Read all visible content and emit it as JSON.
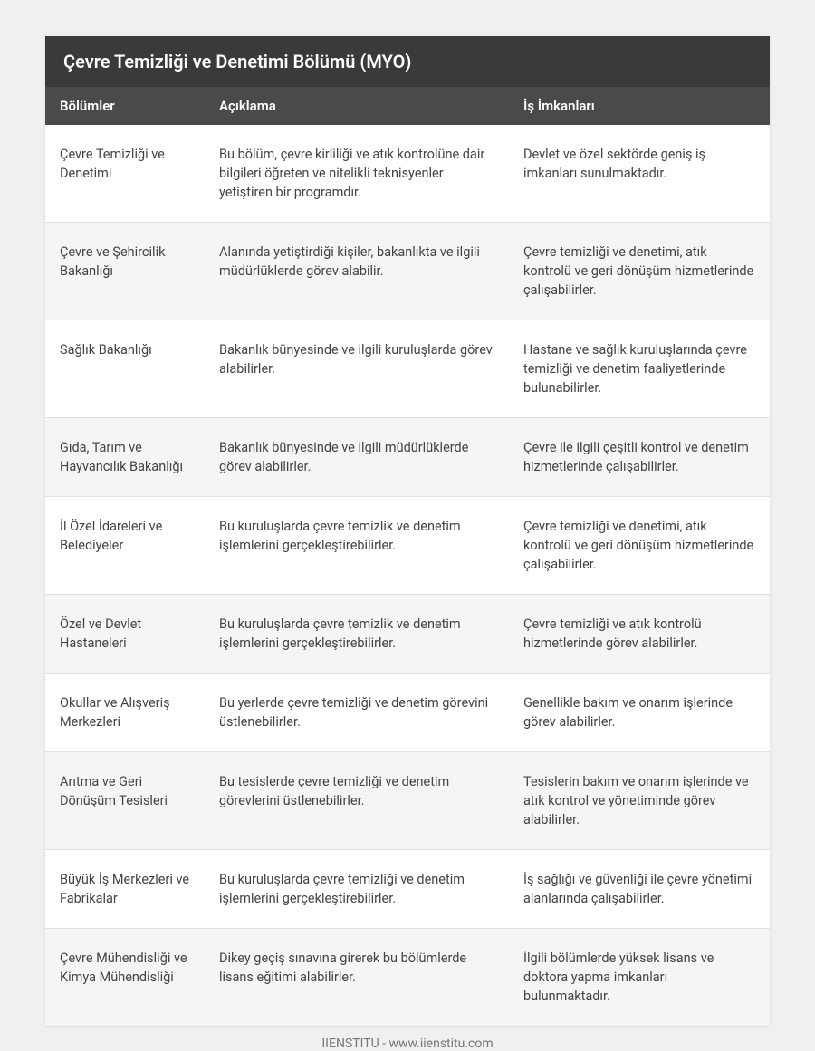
{
  "title": "Çevre Temizliği ve Denetimi Bölümü (MYO)",
  "columns": [
    "Bölümler",
    "Açıklama",
    "İş İmkanları"
  ],
  "rows": [
    {
      "c1": "Çevre Temizliği ve Denetimi",
      "c2": "Bu bölüm, çevre kirliliği ve atık kontrolüne dair bilgileri öğreten ve nitelikli teknisyenler yetiştiren bir programdır.",
      "c3": "Devlet ve özel sektörde geniş iş imkanları sunulmaktadır."
    },
    {
      "c1": "Çevre ve Şehircilik Bakanlığı",
      "c2": "Alanında yetiştirdiği kişiler, bakanlıkta ve ilgili müdürlüklerde görev alabilir.",
      "c3": "Çevre temizliği ve denetimi, atık kontrolü ve geri dönüşüm hizmetlerinde çalışabilirler."
    },
    {
      "c1": "Sağlık Bakanlığı",
      "c2": "Bakanlık bünyesinde ve ilgili kuruluşlarda görev alabilirler.",
      "c3": "Hastane ve sağlık kuruluşlarında çevre temizliği ve denetim faaliyetlerinde bulunabilirler."
    },
    {
      "c1": "Gıda, Tarım ve Hayvancılık Bakanlığı",
      "c2": "Bakanlık bünyesinde ve ilgili müdürlüklerde görev alabilirler.",
      "c3": "Çevre ile ilgili çeşitli kontrol ve denetim hizmetlerinde çalışabilirler."
    },
    {
      "c1": "İl Özel İdareleri ve Belediyeler",
      "c2": "Bu kuruluşlarda çevre temizlik ve denetim işlemlerini gerçekleştirebilirler.",
      "c3": "Çevre temizliği ve denetimi, atık kontrolü ve geri dönüşüm hizmetlerinde çalışabilirler."
    },
    {
      "c1": "Özel ve Devlet Hastaneleri",
      "c2": "Bu kuruluşlarda çevre temizlik ve denetim işlemlerini gerçekleştirebilirler.",
      "c3": "Çevre temizliği ve atık kontrolü hizmetlerinde görev alabilirler."
    },
    {
      "c1": "Okullar ve Alışveriş Merkezleri",
      "c2": "Bu yerlerde çevre temizliği ve denetim görevini üstlenebilirler.",
      "c3": "Genellikle bakım ve onarım işlerinde görev alabilirler."
    },
    {
      "c1": "Arıtma ve Geri Dönüşüm Tesisleri",
      "c2": "Bu tesislerde çevre temizliği ve denetim görevlerini üstlenebilirler.",
      "c3": "Tesislerin bakım ve onarım işlerinde ve atık kontrol ve yönetiminde görev alabilirler."
    },
    {
      "c1": "Büyük İş Merkezleri ve Fabrikalar",
      "c2": "Bu kuruluşlarda çevre temizliği ve denetim işlemlerini gerçekleştirebilirler.",
      "c3": "İş sağlığı ve güvenliği ile çevre yönetimi alanlarında çalışabilirler."
    },
    {
      "c1": "Çevre Mühendisliği ve Kimya Mühendisliği",
      "c2": "Dikey geçiş sınavına girerek bu bölümlerde lisans eğitimi alabilirler.",
      "c3": "İlgili bölümlerde yüksek lisans ve doktora yapma imkanları bulunmaktadır."
    }
  ],
  "footer": "IIENSTITU - www.iienstitu.com",
  "styles": {
    "title_bg": "#3a3a3a",
    "header_bg": "#4a4a4a",
    "header_fg": "#ffffff",
    "row_odd_bg": "#ffffff",
    "row_even_bg": "#f5f5f5",
    "text_color": "#444444",
    "border_color": "#e0e0e0",
    "body_bg": "#f0f0f0",
    "footer_color": "#777777",
    "title_fontsize": 20,
    "header_fontsize": 15,
    "cell_fontsize": 14.5,
    "col_widths_pct": [
      22,
      42,
      36
    ]
  }
}
